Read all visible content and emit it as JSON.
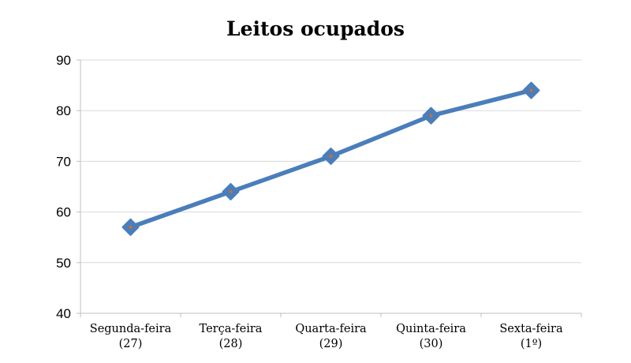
{
  "chart_data": {
    "type": "line",
    "title": "Leitos ocupados",
    "xlabel": "",
    "ylabel": "",
    "categories": [
      [
        "Segunda-feira",
        "(27)"
      ],
      [
        "Terça-feira",
        "(28)"
      ],
      [
        "Quarta-feira",
        "(29)"
      ],
      [
        "Quinta-feira",
        "(30)"
      ],
      [
        "Sexta-feira",
        "(1º)"
      ]
    ],
    "series": [
      {
        "values": [
          57,
          64,
          71,
          79,
          84
        ]
      }
    ],
    "ylim": [
      40,
      90
    ],
    "yticks": [
      40,
      50,
      60,
      70,
      80,
      90
    ],
    "grid": true,
    "legend": "none",
    "colors": {
      "line": "#4a7ebb",
      "marker": "#4a7ebb",
      "marker_center": "#e46c0a",
      "grid": "#d9d9d9",
      "axis": "#bfbfbf"
    }
  }
}
